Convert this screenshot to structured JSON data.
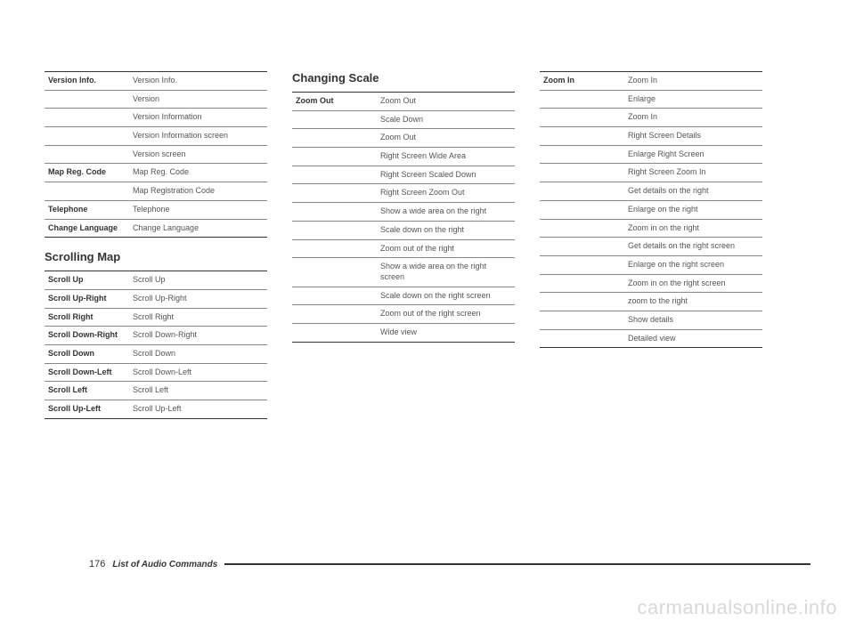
{
  "footer": {
    "page_number": "176",
    "title": "List of Audio Commands"
  },
  "watermark": "carmanualsonline.info",
  "col1": {
    "table1": {
      "rows": [
        {
          "label": "Version Info.",
          "value": "Version Info.",
          "group_start": true
        },
        {
          "label": "",
          "value": "Version"
        },
        {
          "label": "",
          "value": "Version Information"
        },
        {
          "label": "",
          "value": "Version Information screen"
        },
        {
          "label": "",
          "value": "Version screen"
        },
        {
          "label": "Map Reg. Code",
          "value": "Map Reg. Code",
          "group_start": true
        },
        {
          "label": "",
          "value": "Map Registration Code"
        },
        {
          "label": "Telephone",
          "value": "Telephone",
          "group_start": true
        },
        {
          "label": "Change Language",
          "value": "Change Language",
          "group_start": true
        }
      ]
    },
    "section2_title": "Scrolling Map",
    "table2": {
      "rows": [
        {
          "label": "Scroll Up",
          "value": "Scroll Up",
          "group_start": true
        },
        {
          "label": "Scroll Up-Right",
          "value": "Scroll Up-Right",
          "group_start": true
        },
        {
          "label": "Scroll Right",
          "value": "Scroll Right",
          "group_start": true
        },
        {
          "label": "Scroll Down-Right",
          "value": "Scroll Down-Right",
          "group_start": true
        },
        {
          "label": "Scroll Down",
          "value": "Scroll Down",
          "group_start": true
        },
        {
          "label": "Scroll Down-Left",
          "value": "Scroll Down-Left",
          "group_start": true
        },
        {
          "label": "Scroll Left",
          "value": "Scroll Left",
          "group_start": true
        },
        {
          "label": "Scroll Up-Left",
          "value": "Scroll Up-Left",
          "group_start": true
        }
      ]
    }
  },
  "col2": {
    "section_title": "Changing Scale",
    "table": {
      "rows": [
        {
          "label": "Zoom Out",
          "value": "Zoom Out",
          "group_start": true
        },
        {
          "label": "",
          "value": "Scale Down"
        },
        {
          "label": "",
          "value": "Zoom Out"
        },
        {
          "label": "",
          "value": "Right Screen Wide Area"
        },
        {
          "label": "",
          "value": "Right Screen Scaled Down"
        },
        {
          "label": "",
          "value": "Right Screen Zoom Out"
        },
        {
          "label": "",
          "value": "Show a wide area on the right"
        },
        {
          "label": "",
          "value": "Scale down on the right"
        },
        {
          "label": "",
          "value": "Zoom out of the right"
        },
        {
          "label": "",
          "value": "Show a wide area on the right screen"
        },
        {
          "label": "",
          "value": "Scale down on the right screen"
        },
        {
          "label": "",
          "value": "Zoom out of the right screen"
        },
        {
          "label": "",
          "value": "Wide view"
        }
      ]
    }
  },
  "col3": {
    "table": {
      "rows": [
        {
          "label": "Zoom In",
          "value": "Zoom In",
          "group_start": true
        },
        {
          "label": "",
          "value": "Enlarge"
        },
        {
          "label": "",
          "value": "Zoom In"
        },
        {
          "label": "",
          "value": "Right Screen Details"
        },
        {
          "label": "",
          "value": "Enlarge Right Screen"
        },
        {
          "label": "",
          "value": "Right Screen Zoom In"
        },
        {
          "label": "",
          "value": "Get details on the right"
        },
        {
          "label": "",
          "value": "Enlarge on the right"
        },
        {
          "label": "",
          "value": "Zoom in on the right"
        },
        {
          "label": "",
          "value": "Get details on the right screen"
        },
        {
          "label": "",
          "value": "Enlarge on the right screen"
        },
        {
          "label": "",
          "value": "Zoom in on the right screen"
        },
        {
          "label": "",
          "value": "zoom to the right"
        },
        {
          "label": "",
          "value": "Show details"
        },
        {
          "label": "",
          "value": "Detailed view"
        }
      ]
    }
  }
}
